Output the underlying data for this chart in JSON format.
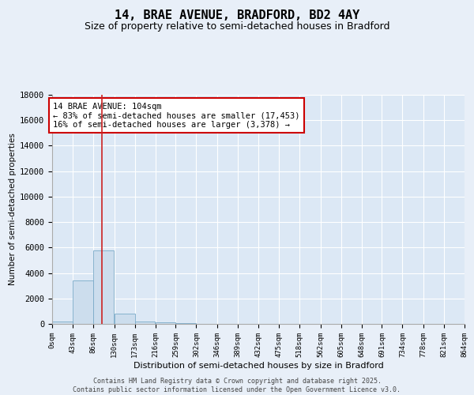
{
  "title": "14, BRAE AVENUE, BRADFORD, BD2 4AY",
  "subtitle": "Size of property relative to semi-detached houses in Bradford",
  "xlabel": "Distribution of semi-detached houses by size in Bradford",
  "ylabel": "Number of semi-detached properties",
  "footer_line1": "Contains HM Land Registry data © Crown copyright and database right 2025.",
  "footer_line2": "Contains public sector information licensed under the Open Government Licence v3.0.",
  "annotation_title": "14 BRAE AVENUE: 104sqm",
  "annotation_line1": "← 83% of semi-detached houses are smaller (17,453)",
  "annotation_line2": "16% of semi-detached houses are larger (3,378) →",
  "bin_edges": [
    0,
    43,
    86,
    130,
    173,
    216,
    259,
    302,
    346,
    389,
    432,
    475,
    518,
    562,
    605,
    648,
    691,
    734,
    778,
    821,
    864
  ],
  "bin_labels": [
    "0sqm",
    "43sqm",
    "86sqm",
    "130sqm",
    "173sqm",
    "216sqm",
    "259sqm",
    "302sqm",
    "346sqm",
    "389sqm",
    "432sqm",
    "475sqm",
    "518sqm",
    "562sqm",
    "605sqm",
    "648sqm",
    "691sqm",
    "734sqm",
    "778sqm",
    "821sqm",
    "864sqm"
  ],
  "bar_values": [
    200,
    3400,
    5800,
    800,
    200,
    100,
    50,
    10,
    0,
    0,
    0,
    0,
    0,
    0,
    0,
    0,
    0,
    0,
    0,
    0
  ],
  "bar_color": "#ccdded",
  "bar_edgecolor": "#7aaac8",
  "redline_x": 104,
  "ylim": [
    0,
    18000
  ],
  "yticks": [
    0,
    2000,
    4000,
    6000,
    8000,
    10000,
    12000,
    14000,
    16000,
    18000
  ],
  "background_color": "#e8eff8",
  "plot_bg_color": "#dce8f5",
  "title_fontsize": 11,
  "subtitle_fontsize": 9,
  "annotation_box_edgecolor": "#cc0000",
  "annotation_fontsize": 7.5,
  "footer_fontsize": 6,
  "xlabel_fontsize": 8,
  "ylabel_fontsize": 7.5
}
